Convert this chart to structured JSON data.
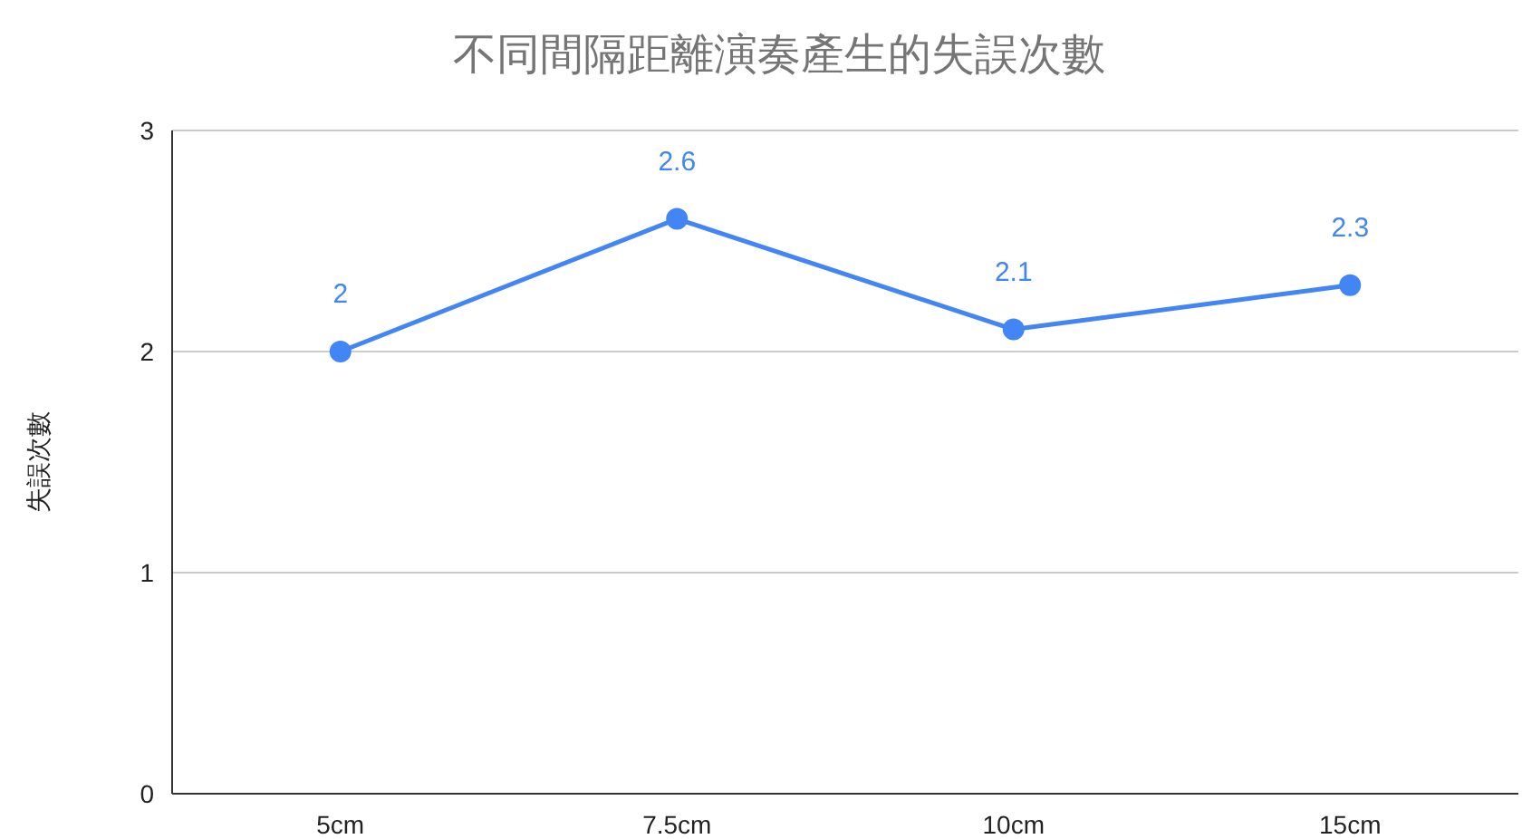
{
  "chart_data": {
    "type": "line",
    "title": "不同間隔距離演奏產生的失誤次數",
    "ylabel": "失誤次數",
    "categories": [
      "5cm",
      "7.5cm",
      "10cm",
      "15cm"
    ],
    "series": [
      {
        "color": "#4285f4",
        "values": [
          2,
          2.6,
          2.1,
          2.3
        ]
      }
    ],
    "ylim": [
      0,
      3
    ],
    "yticks": [
      0,
      1,
      2,
      3
    ],
    "grid": "y",
    "marker": "circle",
    "data_labels": true
  }
}
